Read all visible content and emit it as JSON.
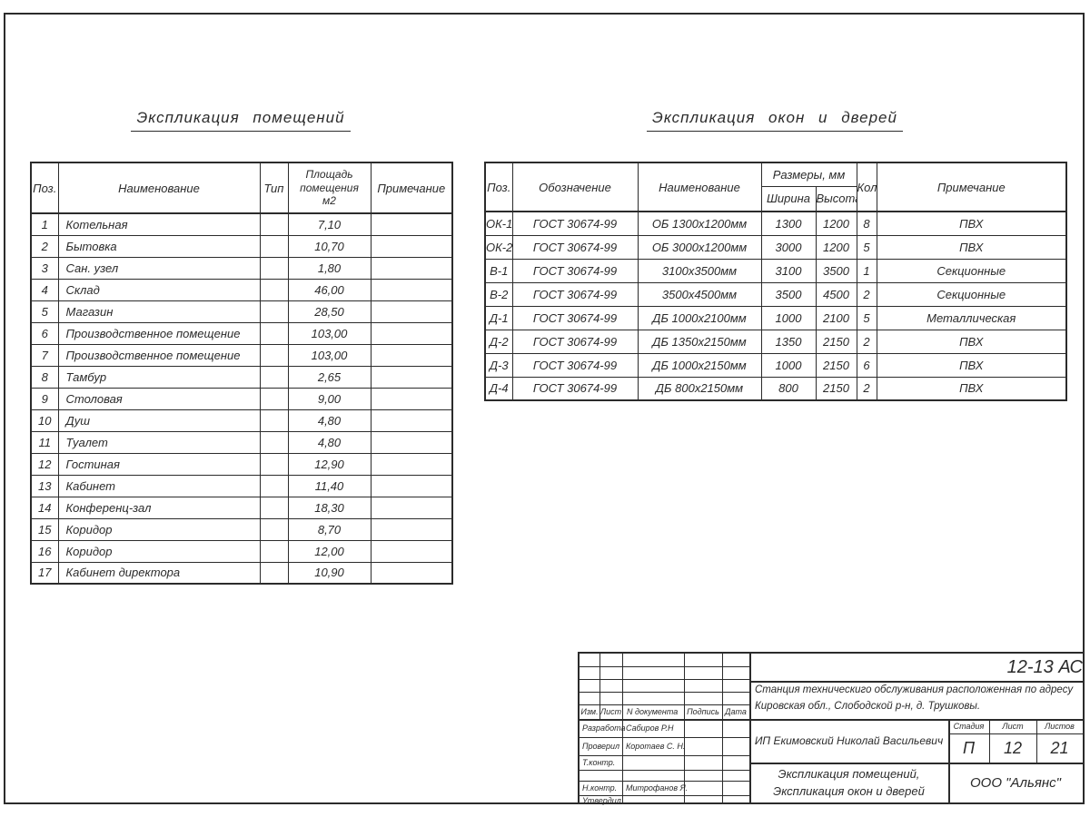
{
  "colors": {
    "ink": "#2b2b2b"
  },
  "rooms": {
    "title": "Экспликация помещений",
    "headers": {
      "pos": "Поз.",
      "name": "Наименование",
      "type": "Тип",
      "area1": "Площадь",
      "area2": "помещения",
      "area3": "м2",
      "note": "Примечание"
    },
    "rows": [
      {
        "pos": "1",
        "name": "Котельная",
        "type": "",
        "area": "7,10",
        "note": ""
      },
      {
        "pos": "2",
        "name": "Бытовка",
        "type": "",
        "area": "10,70",
        "note": ""
      },
      {
        "pos": "3",
        "name": "Сан. узел",
        "type": "",
        "area": "1,80",
        "note": ""
      },
      {
        "pos": "4",
        "name": "Склад",
        "type": "",
        "area": "46,00",
        "note": ""
      },
      {
        "pos": "5",
        "name": "Магазин",
        "type": "",
        "area": "28,50",
        "note": ""
      },
      {
        "pos": "6",
        "name": "Производственное помещение",
        "type": "",
        "area": "103,00",
        "note": ""
      },
      {
        "pos": "7",
        "name": "Производственное помещение",
        "type": "",
        "area": "103,00",
        "note": ""
      },
      {
        "pos": "8",
        "name": "Тамбур",
        "type": "",
        "area": "2,65",
        "note": ""
      },
      {
        "pos": "9",
        "name": "Столовая",
        "type": "",
        "area": "9,00",
        "note": ""
      },
      {
        "pos": "10",
        "name": "Душ",
        "type": "",
        "area": "4,80",
        "note": ""
      },
      {
        "pos": "11",
        "name": "Туалет",
        "type": "",
        "area": "4,80",
        "note": ""
      },
      {
        "pos": "12",
        "name": "Гостиная",
        "type": "",
        "area": "12,90",
        "note": ""
      },
      {
        "pos": "13",
        "name": "Кабинет",
        "type": "",
        "area": "11,40",
        "note": ""
      },
      {
        "pos": "14",
        "name": "Конференц-зал",
        "type": "",
        "area": "18,30",
        "note": ""
      },
      {
        "pos": "15",
        "name": "Коридор",
        "type": "",
        "area": "8,70",
        "note": ""
      },
      {
        "pos": "16",
        "name": "Коридор",
        "type": "",
        "area": "12,00",
        "note": ""
      },
      {
        "pos": "17",
        "name": "Кабинет директора",
        "type": "",
        "area": "10,90",
        "note": ""
      }
    ]
  },
  "openings": {
    "title": "Экспликация окон и дверей",
    "headers": {
      "pos": "Поз.",
      "designation": "Обозначение",
      "name": "Наименование",
      "sizes": "Размеры, мм",
      "width": "Ширина",
      "height": "Высота",
      "qty": "Кол.",
      "note": "Примечание"
    },
    "rows": [
      {
        "pos": "ОК-1",
        "designation": "ГОСТ 30674-99",
        "name": "ОБ 1300х1200мм",
        "width": "1300",
        "height": "1200",
        "qty": "8",
        "note": "ПВХ"
      },
      {
        "pos": "ОК-2",
        "designation": "ГОСТ 30674-99",
        "name": "ОБ 3000х1200мм",
        "width": "3000",
        "height": "1200",
        "qty": "5",
        "note": "ПВХ"
      },
      {
        "pos": "В-1",
        "designation": "ГОСТ 30674-99",
        "name": "3100х3500мм",
        "width": "3100",
        "height": "3500",
        "qty": "1",
        "note": "Секционные"
      },
      {
        "pos": "В-2",
        "designation": "ГОСТ 30674-99",
        "name": "3500х4500мм",
        "width": "3500",
        "height": "4500",
        "qty": "2",
        "note": "Секционные"
      },
      {
        "pos": "Д-1",
        "designation": "ГОСТ 30674-99",
        "name": "ДБ 1000х2100мм",
        "width": "1000",
        "height": "2100",
        "qty": "5",
        "note": "Металлическая"
      },
      {
        "pos": "Д-2",
        "designation": "ГОСТ 30674-99",
        "name": "ДБ 1350х2150мм",
        "width": "1350",
        "height": "2150",
        "qty": "2",
        "note": "ПВХ"
      },
      {
        "pos": "Д-3",
        "designation": "ГОСТ 30674-99",
        "name": "ДБ 1000х2150мм",
        "width": "1000",
        "height": "2150",
        "qty": "6",
        "note": "ПВХ"
      },
      {
        "pos": "Д-4",
        "designation": "ГОСТ 30674-99",
        "name": "ДБ 800х2150мм",
        "width": "800",
        "height": "2150",
        "qty": "2",
        "note": "ПВХ"
      }
    ]
  },
  "title_block": {
    "code": "12-13 АС",
    "object_line1": "Станция техническиго обслуживания расположенная по адресу",
    "object_line2": "Кировская обл., Слободской р-н, д. Трушковы.",
    "rev_headers": [
      "Изм.",
      "Лист",
      "N документа",
      "Подпись",
      "Дата"
    ],
    "roles": [
      {
        "label": "Разработал",
        "name": "Сабиров Р.Н"
      },
      {
        "label": "Проверил",
        "name": "Коротаев С. Н."
      },
      {
        "label": "Т.контр.",
        "name": ""
      },
      {
        "label": "Н.контр.",
        "name": "Митрофанов Я. А."
      },
      {
        "label": "Утвердил",
        "name": ""
      }
    ],
    "client": "ИП Екимовский Николай Васильевич",
    "stage_header": "Стадия",
    "sheet_header": "Лист",
    "sheets_header": "Листов",
    "stage": "П",
    "sheet": "12",
    "sheets": "21",
    "doc_title_line1": "Экспликация помещений,",
    "doc_title_line2": "Экспликация окон и дверей",
    "company": "ООО \"Альянс\""
  }
}
